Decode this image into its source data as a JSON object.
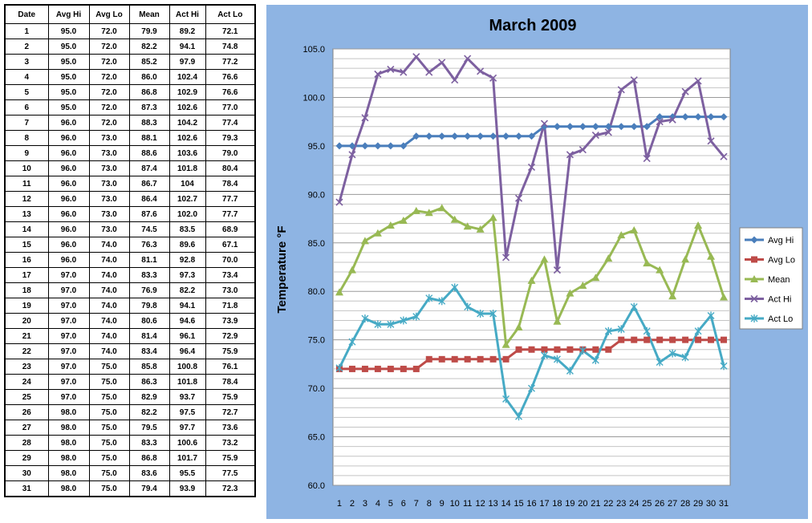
{
  "table": {
    "headers": [
      "Date",
      "Avg Hi",
      "Avg Lo",
      "Mean",
      "Act Hi",
      "Act Lo"
    ],
    "rows": [
      [
        "1",
        "95.0",
        "72.0",
        "79.9",
        "89.2",
        "72.1"
      ],
      [
        "2",
        "95.0",
        "72.0",
        "82.2",
        "94.1",
        "74.8"
      ],
      [
        "3",
        "95.0",
        "72.0",
        "85.2",
        "97.9",
        "77.2"
      ],
      [
        "4",
        "95.0",
        "72.0",
        "86.0",
        "102.4",
        "76.6"
      ],
      [
        "5",
        "95.0",
        "72.0",
        "86.8",
        "102.9",
        "76.6"
      ],
      [
        "6",
        "95.0",
        "72.0",
        "87.3",
        "102.6",
        "77.0"
      ],
      [
        "7",
        "96.0",
        "72.0",
        "88.3",
        "104.2",
        "77.4"
      ],
      [
        "8",
        "96.0",
        "73.0",
        "88.1",
        "102.6",
        "79.3"
      ],
      [
        "9",
        "96.0",
        "73.0",
        "88.6",
        "103.6",
        "79.0"
      ],
      [
        "10",
        "96.0",
        "73.0",
        "87.4",
        "101.8",
        "80.4"
      ],
      [
        "11",
        "96.0",
        "73.0",
        "86.7",
        "104",
        "78.4"
      ],
      [
        "12",
        "96.0",
        "73.0",
        "86.4",
        "102.7",
        "77.7"
      ],
      [
        "13",
        "96.0",
        "73.0",
        "87.6",
        "102.0",
        "77.7"
      ],
      [
        "14",
        "96.0",
        "73.0",
        "74.5",
        "83.5",
        "68.9"
      ],
      [
        "15",
        "96.0",
        "74.0",
        "76.3",
        "89.6",
        "67.1"
      ],
      [
        "16",
        "96.0",
        "74.0",
        "81.1",
        "92.8",
        "70.0"
      ],
      [
        "17",
        "97.0",
        "74.0",
        "83.3",
        "97.3",
        "73.4"
      ],
      [
        "18",
        "97.0",
        "74.0",
        "76.9",
        "82.2",
        "73.0"
      ],
      [
        "19",
        "97.0",
        "74.0",
        "79.8",
        "94.1",
        "71.8"
      ],
      [
        "20",
        "97.0",
        "74.0",
        "80.6",
        "94.6",
        "73.9"
      ],
      [
        "21",
        "97.0",
        "74.0",
        "81.4",
        "96.1",
        "72.9"
      ],
      [
        "22",
        "97.0",
        "74.0",
        "83.4",
        "96.4",
        "75.9"
      ],
      [
        "23",
        "97.0",
        "75.0",
        "85.8",
        "100.8",
        "76.1"
      ],
      [
        "24",
        "97.0",
        "75.0",
        "86.3",
        "101.8",
        "78.4"
      ],
      [
        "25",
        "97.0",
        "75.0",
        "82.9",
        "93.7",
        "75.9"
      ],
      [
        "26",
        "98.0",
        "75.0",
        "82.2",
        "97.5",
        "72.7"
      ],
      [
        "27",
        "98.0",
        "75.0",
        "79.5",
        "97.7",
        "73.6"
      ],
      [
        "28",
        "98.0",
        "75.0",
        "83.3",
        "100.6",
        "73.2"
      ],
      [
        "29",
        "98.0",
        "75.0",
        "86.8",
        "101.7",
        "75.9"
      ],
      [
        "30",
        "98.0",
        "75.0",
        "83.6",
        "95.5",
        "77.5"
      ],
      [
        "31",
        "98.0",
        "75.0",
        "79.4",
        "93.9",
        "72.3"
      ]
    ]
  },
  "chart_data": {
    "type": "line",
    "title": "March 2009",
    "xlabel": "",
    "ylabel": "Temperature °F",
    "ylim": [
      60.0,
      105.0
    ],
    "ytick_step": 5,
    "yticks": [
      "60.0",
      "65.0",
      "70.0",
      "75.0",
      "80.0",
      "85.0",
      "90.0",
      "95.0",
      "100.0",
      "105.0"
    ],
    "grid": true,
    "legend_position": "right",
    "x": [
      "1",
      "2",
      "3",
      "4",
      "5",
      "6",
      "7",
      "8",
      "9",
      "10",
      "11",
      "12",
      "13",
      "14",
      "15",
      "16",
      "17",
      "18",
      "19",
      "20",
      "21",
      "22",
      "23",
      "24",
      "25",
      "26",
      "27",
      "28",
      "29",
      "30",
      "31"
    ],
    "series": [
      {
        "name": "Avg Hi",
        "color": "#4a7ebb",
        "marker": "diamond",
        "values": [
          95,
          95,
          95,
          95,
          95,
          95,
          96,
          96,
          96,
          96,
          96,
          96,
          96,
          96,
          96,
          96,
          97,
          97,
          97,
          97,
          97,
          97,
          97,
          97,
          97,
          98,
          98,
          98,
          98,
          98,
          98
        ]
      },
      {
        "name": "Avg Lo",
        "color": "#be4b48",
        "marker": "square",
        "values": [
          72,
          72,
          72,
          72,
          72,
          72,
          72,
          73,
          73,
          73,
          73,
          73,
          73,
          73,
          74,
          74,
          74,
          74,
          74,
          74,
          74,
          74,
          75,
          75,
          75,
          75,
          75,
          75,
          75,
          75,
          75
        ]
      },
      {
        "name": "Mean",
        "color": "#98b954",
        "marker": "triangle",
        "values": [
          79.9,
          82.2,
          85.2,
          86.0,
          86.8,
          87.3,
          88.3,
          88.1,
          88.6,
          87.4,
          86.7,
          86.4,
          87.6,
          74.5,
          76.3,
          81.1,
          83.3,
          76.9,
          79.8,
          80.6,
          81.4,
          83.4,
          85.8,
          86.3,
          82.9,
          82.2,
          79.5,
          83.3,
          86.8,
          83.6,
          79.4
        ]
      },
      {
        "name": "Act Hi",
        "color": "#7d60a0",
        "marker": "x",
        "values": [
          89.2,
          94.1,
          97.9,
          102.4,
          102.9,
          102.6,
          104.2,
          102.6,
          103.6,
          101.8,
          104,
          102.7,
          102.0,
          83.5,
          89.6,
          92.8,
          97.3,
          82.2,
          94.1,
          94.6,
          96.1,
          96.4,
          100.8,
          101.8,
          93.7,
          97.5,
          97.7,
          100.6,
          101.7,
          95.5,
          93.9
        ]
      },
      {
        "name": "Act Lo",
        "color": "#46aac5",
        "marker": "star",
        "values": [
          72.1,
          74.8,
          77.2,
          76.6,
          76.6,
          77.0,
          77.4,
          79.3,
          79.0,
          80.4,
          78.4,
          77.7,
          77.7,
          68.9,
          67.1,
          70.0,
          73.4,
          73.0,
          71.8,
          73.9,
          72.9,
          75.9,
          76.1,
          78.4,
          75.9,
          72.7,
          73.6,
          73.2,
          75.9,
          77.5,
          72.3
        ]
      }
    ]
  }
}
